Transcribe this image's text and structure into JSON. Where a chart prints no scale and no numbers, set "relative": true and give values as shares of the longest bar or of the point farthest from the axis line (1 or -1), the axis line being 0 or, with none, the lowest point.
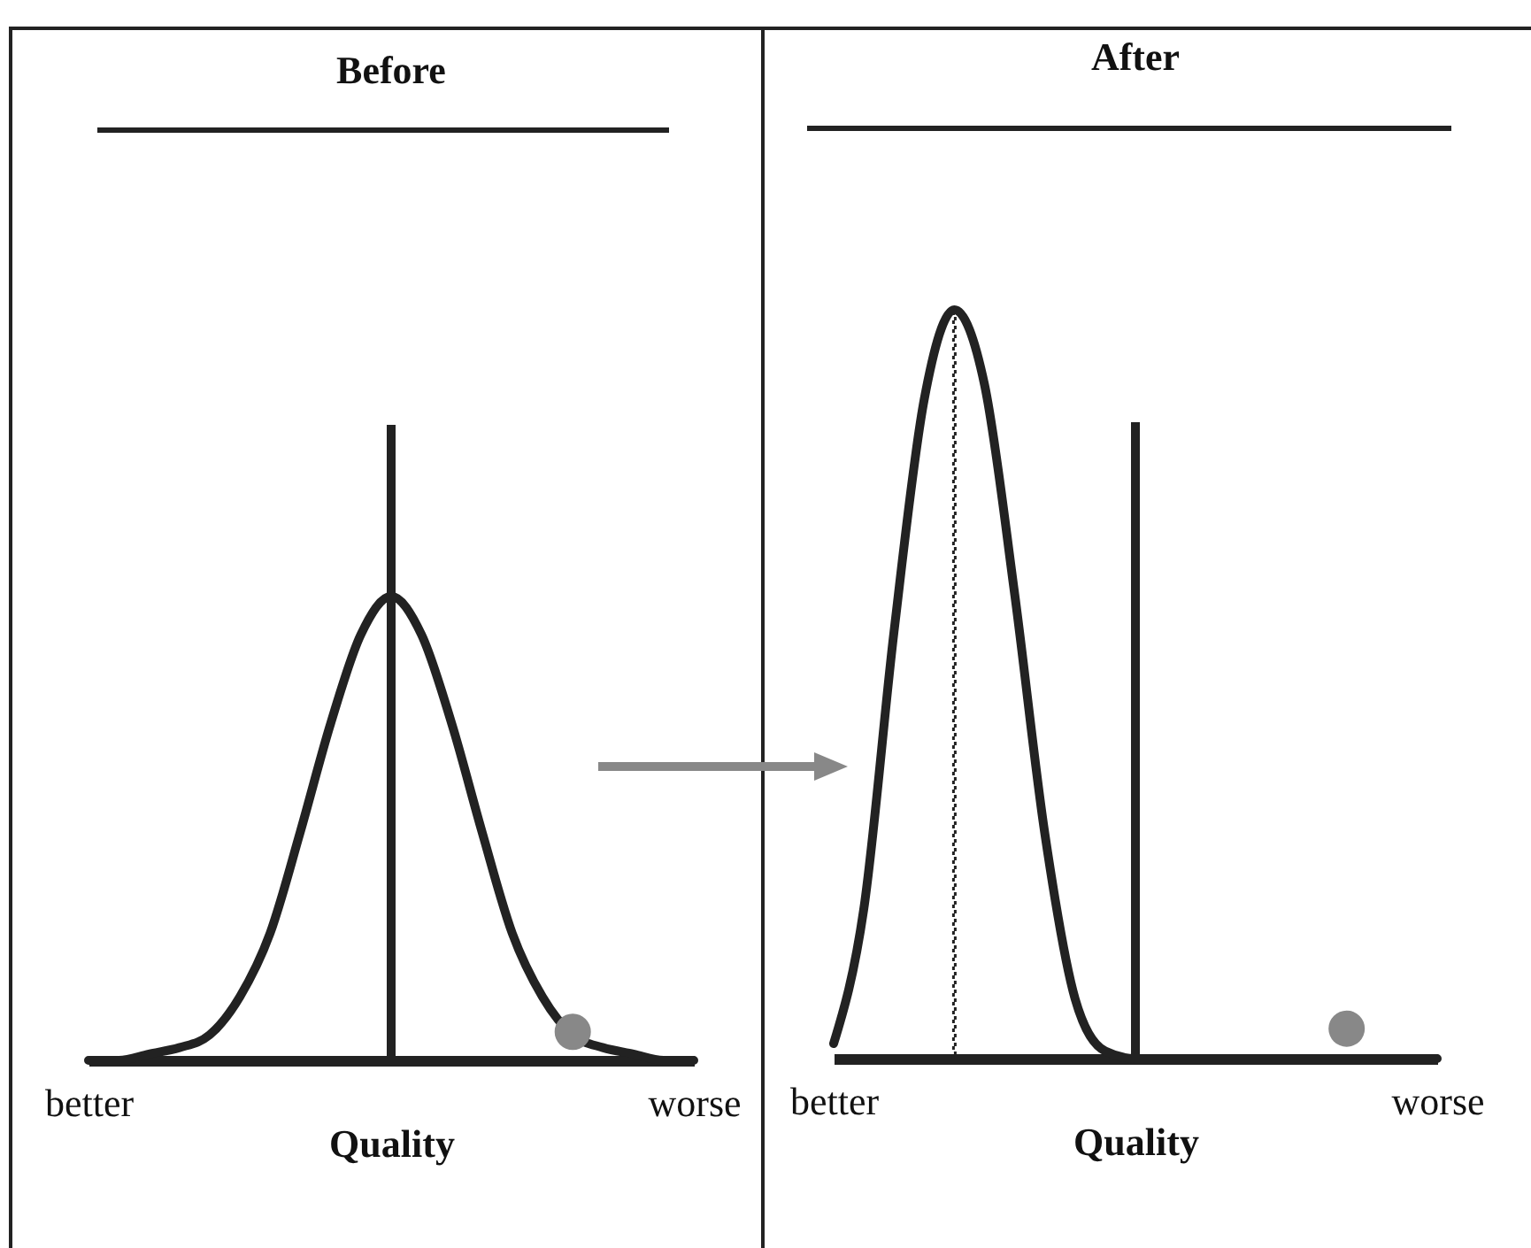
{
  "chart_data": [
    {
      "type": "line",
      "title": "Before",
      "xlabel": "Quality",
      "relative": true,
      "categories": [
        "better",
        null,
        null,
        null,
        null,
        null,
        null,
        null,
        null,
        null,
        null,
        null,
        null,
        null,
        null,
        null,
        null,
        null,
        null,
        null,
        "worse"
      ],
      "series": [
        {
          "color": "#222222",
          "values": [
            0,
            0,
            0.01,
            0.02,
            0.04,
            0.1,
            0.2,
            0.36,
            0.53,
            0.67,
            0.73,
            0.67,
            0.53,
            0.36,
            0.2,
            0.1,
            0.04,
            0.02,
            0.01,
            0,
            0
          ]
        },
        {
          "type": "bar",
          "color": "#222222",
          "values": [
            null,
            null,
            null,
            null,
            null,
            null,
            null,
            null,
            null,
            null,
            1,
            null,
            null,
            null,
            null,
            null,
            null,
            null,
            null,
            null,
            null
          ]
        },
        {
          "type": "scatter",
          "color": "#888888",
          "marker": "circle",
          "values": [
            null,
            null,
            null,
            null,
            null,
            null,
            null,
            null,
            null,
            null,
            null,
            null,
            null,
            null,
            null,
            null,
            0.045,
            null,
            null,
            null,
            null
          ]
        }
      ]
    },
    {
      "type": "line",
      "title": "After",
      "xlabel": "Quality",
      "relative": true,
      "categories": [
        "better",
        null,
        null,
        null,
        null,
        null,
        null,
        null,
        null,
        null,
        null,
        null,
        null,
        null,
        null,
        null,
        null,
        null,
        null,
        null,
        "worse"
      ],
      "series": [
        {
          "color": "#222222",
          "values": [
            0.02,
            0.2,
            0.57,
            0.88,
            1,
            0.9,
            0.62,
            0.3,
            0.08,
            0.01,
            0,
            0,
            0,
            0,
            0,
            0,
            0,
            0,
            0,
            0,
            0
          ]
        },
        {
          "type": "bar",
          "color": "#222222",
          "line_style": "dotted",
          "values": [
            null,
            null,
            null,
            null,
            1,
            null,
            null,
            null,
            null,
            null,
            null,
            null,
            null,
            null,
            null,
            null,
            null,
            null,
            null,
            null,
            null
          ]
        },
        {
          "type": "bar",
          "color": "#222222",
          "values": [
            null,
            null,
            null,
            null,
            null,
            null,
            null,
            null,
            null,
            null,
            0.85,
            null,
            null,
            null,
            null,
            null,
            null,
            null,
            null,
            null,
            null
          ]
        },
        {
          "type": "scatter",
          "color": "#888888",
          "marker": "circle",
          "values": [
            null,
            null,
            null,
            null,
            null,
            null,
            null,
            null,
            null,
            null,
            null,
            null,
            null,
            null,
            null,
            null,
            null,
            0.04,
            null,
            null,
            null
          ]
        }
      ]
    }
  ]
}
